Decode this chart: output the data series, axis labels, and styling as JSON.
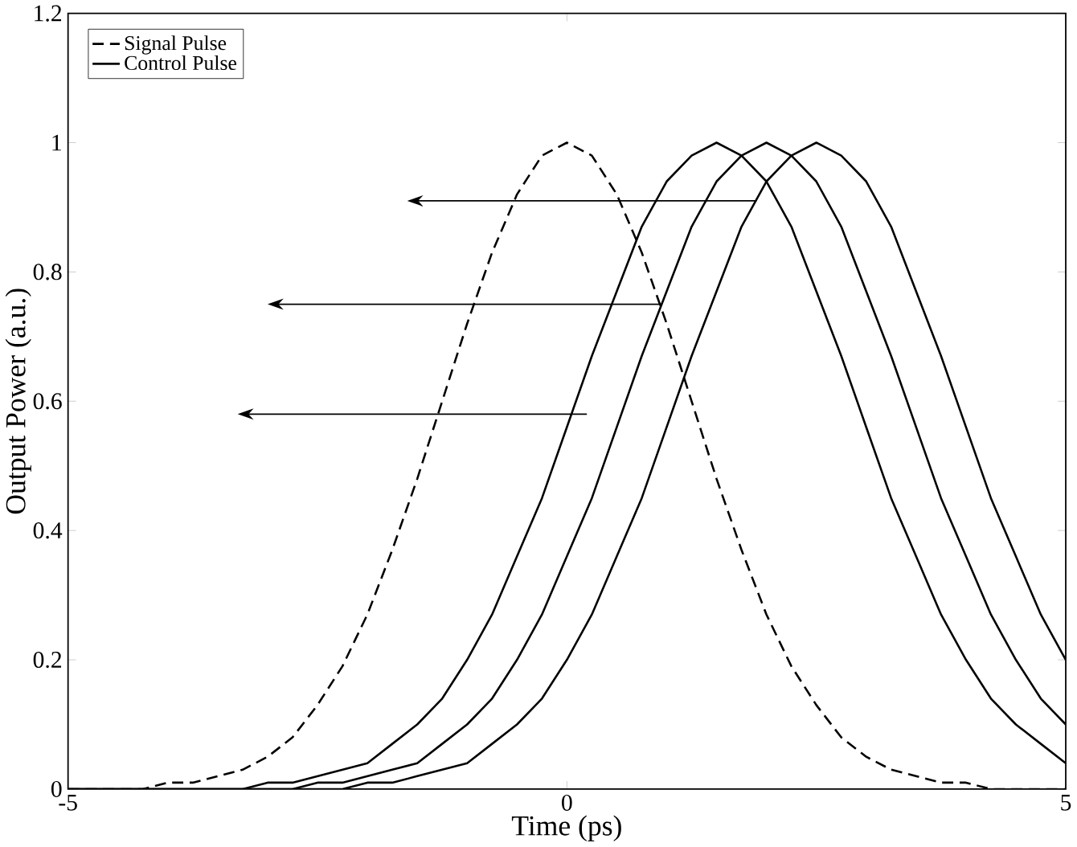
{
  "chart_data": {
    "type": "line",
    "xlabel": "Time (ps)",
    "ylabel": "Output Power (a.u.)",
    "xlim": [
      -5,
      5
    ],
    "ylim": [
      0,
      1.2
    ],
    "xticks": [
      -5,
      0,
      5
    ],
    "yticks": [
      0,
      0.2,
      0.4,
      0.6,
      0.8,
      1,
      1.2
    ],
    "x": [
      -5,
      -4.75,
      -4.5,
      -4.25,
      -4,
      -3.75,
      -3.5,
      -3.25,
      -3,
      -2.75,
      -2.5,
      -2.25,
      -2,
      -1.75,
      -1.5,
      -1.25,
      -1,
      -0.75,
      -0.5,
      -0.25,
      0,
      0.25,
      0.5,
      0.75,
      1,
      1.25,
      1.5,
      1.75,
      2,
      2.25,
      2.5,
      2.75,
      3,
      3.25,
      3.5,
      3.75,
      4,
      4.25,
      4.5,
      4.75,
      5
    ],
    "grid": false,
    "legend": "top left",
    "marker": "none",
    "series": [
      {
        "name": "Signal Pulse",
        "color": "#000000",
        "line_style": "dashed",
        "values": [
          0,
          0,
          0,
          0,
          0.01,
          0.01,
          0.02,
          0.03,
          0.05,
          0.08,
          0.13,
          0.19,
          0.27,
          0.37,
          0.48,
          0.6,
          0.72,
          0.83,
          0.92,
          0.98,
          1,
          0.98,
          0.92,
          0.83,
          0.72,
          0.6,
          0.48,
          0.37,
          0.27,
          0.19,
          0.13,
          0.08,
          0.05,
          0.03,
          0.02,
          0.01,
          0.01,
          0,
          0,
          0,
          0
        ]
      },
      {
        "name": "Control Pulse",
        "color": "#000000",
        "line_style": "solid",
        "values": [
          0,
          0,
          0,
          0,
          0,
          0,
          0,
          0,
          0.01,
          0.01,
          0.02,
          0.03,
          0.04,
          0.07,
          0.1,
          0.14,
          0.2,
          0.27,
          0.36,
          0.45,
          0.56,
          0.67,
          0.77,
          0.87,
          0.94,
          0.98,
          1,
          0.98,
          0.94,
          0.87,
          0.77,
          0.67,
          0.56,
          0.45,
          0.36,
          0.27,
          0.2,
          0.14,
          0.1,
          0.07,
          0.04
        ]
      },
      {
        "color": "#000000",
        "line_style": "solid",
        "values": [
          0,
          0,
          0,
          0,
          0,
          0,
          0,
          0,
          0,
          0,
          0.01,
          0.01,
          0.02,
          0.03,
          0.04,
          0.07,
          0.1,
          0.14,
          0.2,
          0.27,
          0.36,
          0.45,
          0.56,
          0.67,
          0.77,
          0.87,
          0.94,
          0.98,
          1,
          0.98,
          0.94,
          0.87,
          0.77,
          0.67,
          0.56,
          0.45,
          0.36,
          0.27,
          0.2,
          0.14,
          0.1
        ]
      },
      {
        "color": "#000000",
        "line_style": "solid",
        "values": [
          0,
          0,
          0,
          0,
          0,
          0,
          0,
          0,
          0,
          0,
          0,
          0,
          0.01,
          0.01,
          0.02,
          0.03,
          0.04,
          0.07,
          0.1,
          0.14,
          0.2,
          0.27,
          0.36,
          0.45,
          0.56,
          0.67,
          0.77,
          0.87,
          0.94,
          0.98,
          1,
          0.98,
          0.94,
          0.87,
          0.77,
          0.67,
          0.56,
          0.45,
          0.36,
          0.27,
          0.2
        ]
      }
    ]
  }
}
